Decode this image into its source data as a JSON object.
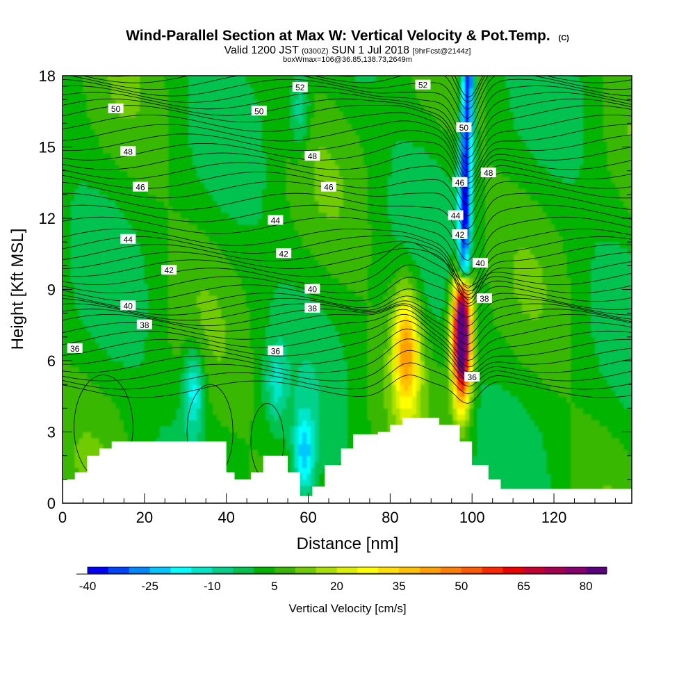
{
  "chart_data": {
    "type": "heatmap",
    "title": "Wind-Parallel Section at Max W: Vertical Velocity & Pot.Temp.",
    "title_mark": "(C)",
    "subtitle": {
      "pre": "Valid 1200 JST",
      "utc": "(0300Z)",
      "date": "SUN 1 Jul 2018",
      "fcst": "[9hrFcst@2144z]"
    },
    "subtitle2": "boxWmax=106@36.85,138.73,2649m",
    "xlabel": "Distance [nm]",
    "ylabel": "Height [Kft MSL]",
    "xlim": [
      0,
      139
    ],
    "ylim": [
      0,
      18
    ],
    "xticks": [
      0,
      20,
      40,
      60,
      80,
      100,
      120
    ],
    "yticks": [
      0,
      3,
      6,
      9,
      12,
      15,
      18
    ],
    "colorbar": {
      "label": "Vertical Velocity [cm/s]",
      "tick_labels": [
        "-40",
        "-25",
        "-10",
        "5",
        "20",
        "35",
        "50",
        "65",
        "80"
      ],
      "levels_from": -40,
      "level_step": 5,
      "colors": [
        "#0000ff",
        "#0044ff",
        "#0088ff",
        "#00c8ff",
        "#00ffff",
        "#00e6c8",
        "#00d28c",
        "#00c350",
        "#00b400",
        "#38b800",
        "#70cc00",
        "#a8e000",
        "#dcf000",
        "#ffff00",
        "#ffe000",
        "#ffc000",
        "#ffa000",
        "#ff8000",
        "#ff5a00",
        "#ff2800",
        "#ee0000",
        "#c80032",
        "#a80050",
        "#880070",
        "#5a0080"
      ]
    },
    "vertical_velocity_cm_s": {
      "description_key": "x in nm, z in kft",
      "background": 3,
      "features": [
        {
          "kind": "updraft",
          "x": 97.5,
          "z": 7.0,
          "peak": 106,
          "sx": 2.2,
          "sz": 2.6
        },
        {
          "kind": "updraft",
          "x": 84,
          "z": 6.5,
          "peak": 38,
          "sx": 3.2,
          "sz": 2.6
        },
        {
          "kind": "downdraft_band",
          "from": [
            99,
            18
          ],
          "to": [
            98,
            10.5
          ],
          "peak": -45
        },
        {
          "kind": "downdraft",
          "x": 32,
          "z": 4.8,
          "peak": -22
        },
        {
          "kind": "downdraft",
          "x": 59,
          "z": 2.0,
          "peak": -25
        },
        {
          "kind": "downdraft",
          "x": 52,
          "z": 5.0,
          "peak": -12
        },
        {
          "kind": "downdraft",
          "x": 58,
          "z": 16.5,
          "peak": -14
        }
      ]
    },
    "terrain_kft": [
      [
        0,
        1.0
      ],
      [
        3,
        1.3
      ],
      [
        6,
        2.0
      ],
      [
        9,
        2.3
      ],
      [
        12,
        2.6
      ],
      [
        38,
        2.6
      ],
      [
        40,
        1.3
      ],
      [
        42,
        1.0
      ],
      [
        46,
        1.3
      ],
      [
        49,
        2.0
      ],
      [
        55,
        1.3
      ],
      [
        58,
        0.3
      ],
      [
        61,
        0.7
      ],
      [
        64,
        1.6
      ],
      [
        68,
        2.3
      ],
      [
        71,
        2.9
      ],
      [
        77,
        3.0
      ],
      [
        80,
        3.3
      ],
      [
        83,
        3.6
      ],
      [
        90,
        3.6
      ],
      [
        92,
        3.3
      ],
      [
        97,
        2.6
      ],
      [
        100,
        1.6
      ],
      [
        104,
        1.0
      ],
      [
        107,
        0.6
      ],
      [
        139,
        0.6
      ]
    ],
    "theta_contours": [
      {
        "level": 36,
        "labels": [
          [
            3,
            6.5
          ],
          [
            52,
            6.4
          ],
          [
            100,
            5.3
          ]
        ]
      },
      {
        "level": 38,
        "labels": [
          [
            20,
            7.5
          ],
          [
            61,
            8.2
          ],
          [
            103,
            8.6
          ]
        ]
      },
      {
        "level": 40,
        "labels": [
          [
            16,
            8.3
          ],
          [
            61,
            9.0
          ],
          [
            102,
            10.1
          ]
        ]
      },
      {
        "level": 42,
        "labels": [
          [
            26,
            9.8
          ],
          [
            54,
            10.5
          ],
          [
            97,
            11.3
          ]
        ]
      },
      {
        "level": 44,
        "labels": [
          [
            16,
            11.1
          ],
          [
            52,
            11.9
          ],
          [
            96,
            12.1
          ]
        ]
      },
      {
        "level": 46,
        "labels": [
          [
            19,
            13.3
          ],
          [
            65,
            13.3
          ],
          [
            97,
            13.5
          ]
        ]
      },
      {
        "level": 48,
        "labels": [
          [
            16,
            14.8
          ],
          [
            61,
            14.6
          ],
          [
            104,
            13.9
          ]
        ]
      },
      {
        "level": 50,
        "labels": [
          [
            13,
            16.6
          ],
          [
            48,
            16.5
          ],
          [
            98,
            15.8
          ]
        ]
      },
      {
        "level": 52,
        "labels": [
          [
            58,
            17.5
          ],
          [
            88,
            17.6
          ]
        ]
      }
    ]
  }
}
